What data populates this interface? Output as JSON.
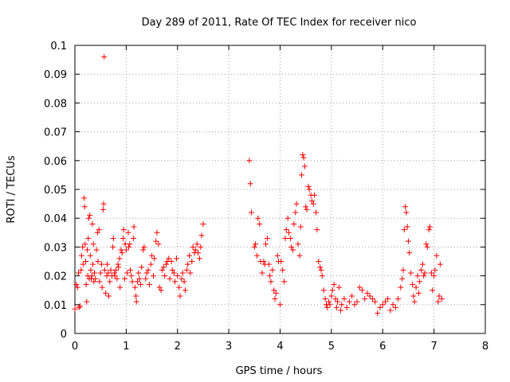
{
  "chart_data": {
    "type": "scatter",
    "title": "Day 289 of 2011, Rate Of TEC Index for receiver nico",
    "xlabel": "GPS time / hours",
    "ylabel": "ROTI / TECUs",
    "xlim": [
      0,
      8
    ],
    "ylim": [
      0,
      0.1
    ],
    "xticks": [
      "0",
      "1",
      "2",
      "3",
      "4",
      "5",
      "6",
      "7",
      "8"
    ],
    "yticks": [
      "0",
      "0.01",
      "0.02",
      "0.03",
      "0.04",
      "0.05",
      "0.06",
      "0.07",
      "0.08",
      "0.09",
      "0.1"
    ],
    "grid": true,
    "marker": "+",
    "color": "#ff0000",
    "points": [
      [
        0.0,
        0.0085
      ],
      [
        0.03,
        0.017
      ],
      [
        0.05,
        0.016
      ],
      [
        0.07,
        0.021
      ],
      [
        0.08,
        0.009
      ],
      [
        0.1,
        0.0095
      ],
      [
        0.12,
        0.022
      ],
      [
        0.13,
        0.027
      ],
      [
        0.15,
        0.03
      ],
      [
        0.16,
        0.024
      ],
      [
        0.18,
        0.047
      ],
      [
        0.19,
        0.044
      ],
      [
        0.2,
        0.031
      ],
      [
        0.21,
        0.025
      ],
      [
        0.22,
        0.017
      ],
      [
        0.23,
        0.011
      ],
      [
        0.24,
        0.029
      ],
      [
        0.25,
        0.02
      ],
      [
        0.26,
        0.033
      ],
      [
        0.27,
        0.04
      ],
      [
        0.28,
        0.019
      ],
      [
        0.29,
        0.041
      ],
      [
        0.3,
        0.027
      ],
      [
        0.31,
        0.022
      ],
      [
        0.32,
        0.019
      ],
      [
        0.33,
        0.02
      ],
      [
        0.34,
        0.038
      ],
      [
        0.35,
        0.024
      ],
      [
        0.36,
        0.031
      ],
      [
        0.37,
        0.018
      ],
      [
        0.38,
        0.021
      ],
      [
        0.4,
        0.019
      ],
      [
        0.42,
        0.029
      ],
      [
        0.44,
        0.035
      ],
      [
        0.45,
        0.025
      ],
      [
        0.47,
        0.036
      ],
      [
        0.48,
        0.018
      ],
      [
        0.5,
        0.021
      ],
      [
        0.52,
        0.024
      ],
      [
        0.53,
        0.016
      ],
      [
        0.55,
        0.043
      ],
      [
        0.56,
        0.045
      ],
      [
        0.57,
        0.096
      ],
      [
        0.58,
        0.022
      ],
      [
        0.6,
        0.014
      ],
      [
        0.62,
        0.02
      ],
      [
        0.63,
        0.024
      ],
      [
        0.65,
        0.021
      ],
      [
        0.66,
        0.013
      ],
      [
        0.68,
        0.018
      ],
      [
        0.7,
        0.022
      ],
      [
        0.72,
        0.02
      ],
      [
        0.74,
        0.03
      ],
      [
        0.75,
        0.033
      ],
      [
        0.77,
        0.021
      ],
      [
        0.78,
        0.02
      ],
      [
        0.8,
        0.022
      ],
      [
        0.82,
        0.019
      ],
      [
        0.84,
        0.024
      ],
      [
        0.85,
        0.023
      ],
      [
        0.87,
        0.026
      ],
      [
        0.88,
        0.016
      ],
      [
        0.9,
        0.029
      ],
      [
        0.92,
        0.028
      ],
      [
        0.94,
        0.033
      ],
      [
        0.95,
        0.036
      ],
      [
        0.97,
        0.019
      ],
      [
        0.98,
        0.031
      ],
      [
        1.0,
        0.029
      ],
      [
        1.02,
        0.021
      ],
      [
        1.04,
        0.035
      ],
      [
        1.05,
        0.03
      ],
      [
        1.07,
        0.031
      ],
      [
        1.08,
        0.022
      ],
      [
        1.1,
        0.02
      ],
      [
        1.12,
        0.018
      ],
      [
        1.14,
        0.033
      ],
      [
        1.15,
        0.037
      ],
      [
        1.17,
        0.016
      ],
      [
        1.19,
        0.013
      ],
      [
        1.2,
        0.011
      ],
      [
        1.22,
        0.018
      ],
      [
        1.24,
        0.021
      ],
      [
        1.26,
        0.019
      ],
      [
        1.28,
        0.017
      ],
      [
        1.3,
        0.023
      ],
      [
        1.33,
        0.029
      ],
      [
        1.35,
        0.03
      ],
      [
        1.38,
        0.019
      ],
      [
        1.4,
        0.021
      ],
      [
        1.43,
        0.022
      ],
      [
        1.45,
        0.017
      ],
      [
        1.48,
        0.024
      ],
      [
        1.5,
        0.027
      ],
      [
        1.53,
        0.02
      ],
      [
        1.55,
        0.026
      ],
      [
        1.58,
        0.032
      ],
      [
        1.6,
        0.035
      ],
      [
        1.63,
        0.031
      ],
      [
        1.65,
        0.016
      ],
      [
        1.68,
        0.015
      ],
      [
        1.7,
        0.022
      ],
      [
        1.73,
        0.023
      ],
      [
        1.75,
        0.02
      ],
      [
        1.78,
        0.024
      ],
      [
        1.8,
        0.025
      ],
      [
        1.83,
        0.026
      ],
      [
        1.85,
        0.019
      ],
      [
        1.88,
        0.025
      ],
      [
        1.9,
        0.022
      ],
      [
        1.93,
        0.021
      ],
      [
        1.95,
        0.018
      ],
      [
        1.98,
        0.026
      ],
      [
        2.0,
        0.02
      ],
      [
        2.03,
        0.016
      ],
      [
        2.05,
        0.013
      ],
      [
        2.08,
        0.019
      ],
      [
        2.1,
        0.021
      ],
      [
        2.13,
        0.018
      ],
      [
        2.15,
        0.015
      ],
      [
        2.18,
        0.022
      ],
      [
        2.2,
        0.024
      ],
      [
        2.23,
        0.027
      ],
      [
        2.25,
        0.021
      ],
      [
        2.28,
        0.025
      ],
      [
        2.3,
        0.03
      ],
      [
        2.33,
        0.028
      ],
      [
        2.35,
        0.029
      ],
      [
        2.38,
        0.031
      ],
      [
        2.4,
        0.028
      ],
      [
        2.43,
        0.026
      ],
      [
        2.45,
        0.03
      ],
      [
        2.47,
        0.034
      ],
      [
        2.5,
        0.038
      ],
      [
        3.4,
        0.06
      ],
      [
        3.42,
        0.052
      ],
      [
        3.44,
        0.042
      ],
      [
        3.5,
        0.03
      ],
      [
        3.52,
        0.031
      ],
      [
        3.55,
        0.027
      ],
      [
        3.57,
        0.04
      ],
      [
        3.6,
        0.038
      ],
      [
        3.62,
        0.025
      ],
      [
        3.65,
        0.021
      ],
      [
        3.68,
        0.025
      ],
      [
        3.7,
        0.024
      ],
      [
        3.72,
        0.031
      ],
      [
        3.75,
        0.033
      ],
      [
        3.78,
        0.024
      ],
      [
        3.8,
        0.02
      ],
      [
        3.82,
        0.018
      ],
      [
        3.85,
        0.022
      ],
      [
        3.88,
        0.015
      ],
      [
        3.9,
        0.012
      ],
      [
        3.92,
        0.014
      ],
      [
        3.95,
        0.027
      ],
      [
        3.97,
        0.025
      ],
      [
        4.0,
        0.01
      ],
      [
        4.02,
        0.025
      ],
      [
        4.05,
        0.022
      ],
      [
        4.08,
        0.018
      ],
      [
        4.1,
        0.033
      ],
      [
        4.12,
        0.036
      ],
      [
        4.15,
        0.04
      ],
      [
        4.17,
        0.035
      ],
      [
        4.2,
        0.033
      ],
      [
        4.22,
        0.03
      ],
      [
        4.25,
        0.029
      ],
      [
        4.27,
        0.038
      ],
      [
        4.3,
        0.042
      ],
      [
        4.32,
        0.045
      ],
      [
        4.35,
        0.031
      ],
      [
        4.38,
        0.027
      ],
      [
        4.4,
        0.037
      ],
      [
        4.42,
        0.055
      ],
      [
        4.44,
        0.062
      ],
      [
        4.46,
        0.061
      ],
      [
        4.48,
        0.058
      ],
      [
        4.5,
        0.044
      ],
      [
        4.52,
        0.043
      ],
      [
        4.55,
        0.051
      ],
      [
        4.57,
        0.05
      ],
      [
        4.6,
        0.048
      ],
      [
        4.62,
        0.046
      ],
      [
        4.65,
        0.045
      ],
      [
        4.67,
        0.048
      ],
      [
        4.7,
        0.042
      ],
      [
        4.72,
        0.036
      ],
      [
        4.75,
        0.025
      ],
      [
        4.78,
        0.023
      ],
      [
        4.8,
        0.022
      ],
      [
        4.82,
        0.02
      ],
      [
        4.85,
        0.015
      ],
      [
        4.88,
        0.012
      ],
      [
        4.9,
        0.01
      ],
      [
        4.92,
        0.009
      ],
      [
        4.95,
        0.011
      ],
      [
        4.97,
        0.01
      ],
      [
        5.0,
        0.013
      ],
      [
        5.02,
        0.015
      ],
      [
        5.05,
        0.017
      ],
      [
        5.08,
        0.012
      ],
      [
        5.1,
        0.009
      ],
      [
        5.12,
        0.011
      ],
      [
        5.15,
        0.016
      ],
      [
        5.18,
        0.008
      ],
      [
        5.2,
        0.01
      ],
      [
        5.25,
        0.012
      ],
      [
        5.3,
        0.009
      ],
      [
        5.35,
        0.011
      ],
      [
        5.4,
        0.013
      ],
      [
        5.45,
        0.01
      ],
      [
        5.5,
        0.011
      ],
      [
        5.55,
        0.016
      ],
      [
        5.6,
        0.015
      ],
      [
        5.65,
        0.012
      ],
      [
        5.7,
        0.014
      ],
      [
        5.75,
        0.013
      ],
      [
        5.8,
        0.012
      ],
      [
        5.85,
        0.011
      ],
      [
        5.9,
        0.007
      ],
      [
        5.95,
        0.009
      ],
      [
        6.0,
        0.01
      ],
      [
        6.05,
        0.011
      ],
      [
        6.1,
        0.012
      ],
      [
        6.15,
        0.008
      ],
      [
        6.2,
        0.01
      ],
      [
        6.25,
        0.009
      ],
      [
        6.3,
        0.012
      ],
      [
        6.35,
        0.016
      ],
      [
        6.38,
        0.019
      ],
      [
        6.4,
        0.022
      ],
      [
        6.42,
        0.036
      ],
      [
        6.44,
        0.044
      ],
      [
        6.46,
        0.042
      ],
      [
        6.48,
        0.037
      ],
      [
        6.5,
        0.032
      ],
      [
        6.52,
        0.028
      ],
      [
        6.55,
        0.021
      ],
      [
        6.58,
        0.017
      ],
      [
        6.6,
        0.013
      ],
      [
        6.62,
        0.011
      ],
      [
        6.65,
        0.016
      ],
      [
        6.68,
        0.02
      ],
      [
        6.7,
        0.014
      ],
      [
        6.72,
        0.018
      ],
      [
        6.75,
        0.022
      ],
      [
        6.78,
        0.024
      ],
      [
        6.8,
        0.02
      ],
      [
        6.82,
        0.021
      ],
      [
        6.85,
        0.031
      ],
      [
        6.87,
        0.03
      ],
      [
        6.9,
        0.036
      ],
      [
        6.92,
        0.037
      ],
      [
        6.95,
        0.021
      ],
      [
        6.97,
        0.015
      ],
      [
        7.0,
        0.02
      ],
      [
        7.02,
        0.022
      ],
      [
        7.05,
        0.027
      ],
      [
        7.08,
        0.011
      ],
      [
        7.1,
        0.013
      ],
      [
        7.12,
        0.024
      ],
      [
        7.15,
        0.012
      ]
    ]
  }
}
